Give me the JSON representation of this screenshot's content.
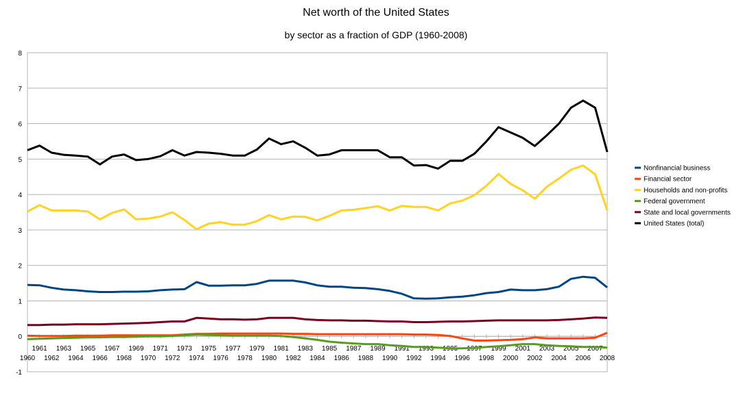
{
  "chart_data": {
    "type": "line",
    "title": "Net worth of the United States",
    "subtitle": "by sector as a fraction of GDP (1960-2008)",
    "xlabel": "",
    "ylabel": "",
    "ylim": [
      -1,
      8
    ],
    "yticks": [
      -1,
      0,
      1,
      2,
      3,
      4,
      5,
      6,
      7,
      8
    ],
    "x": [
      1960,
      1961,
      1962,
      1963,
      1964,
      1965,
      1966,
      1967,
      1968,
      1969,
      1970,
      1971,
      1972,
      1973,
      1974,
      1975,
      1976,
      1977,
      1978,
      1979,
      1980,
      1981,
      1982,
      1983,
      1984,
      1985,
      1986,
      1987,
      1988,
      1989,
      1990,
      1991,
      1992,
      1993,
      1994,
      1995,
      1996,
      1997,
      1998,
      1999,
      2000,
      2001,
      2002,
      2003,
      2004,
      2005,
      2006,
      2007,
      2008
    ],
    "grid": "horizontal",
    "legend_position": "right",
    "series": [
      {
        "name": "Nonfinancial business",
        "color": "#004586",
        "values": [
          1.45,
          1.44,
          1.37,
          1.32,
          1.3,
          1.27,
          1.25,
          1.25,
          1.26,
          1.26,
          1.27,
          1.3,
          1.32,
          1.33,
          1.53,
          1.43,
          1.43,
          1.44,
          1.44,
          1.48,
          1.57,
          1.57,
          1.57,
          1.52,
          1.44,
          1.4,
          1.4,
          1.37,
          1.36,
          1.33,
          1.28,
          1.2,
          1.07,
          1.06,
          1.07,
          1.1,
          1.12,
          1.16,
          1.22,
          1.25,
          1.32,
          1.3,
          1.3,
          1.33,
          1.4,
          1.62,
          1.68,
          1.65,
          1.38
        ]
      },
      {
        "name": "Financial sector",
        "color": "#ff420e",
        "values": [
          0.02,
          0.01,
          0.01,
          0.01,
          0.02,
          0.02,
          0.02,
          0.03,
          0.03,
          0.03,
          0.03,
          0.03,
          0.03,
          0.05,
          0.07,
          0.07,
          0.08,
          0.08,
          0.08,
          0.08,
          0.08,
          0.08,
          0.07,
          0.07,
          0.06,
          0.06,
          0.06,
          0.06,
          0.06,
          0.06,
          0.06,
          0.06,
          0.05,
          0.05,
          0.04,
          0.01,
          -0.06,
          -0.12,
          -0.12,
          -0.11,
          -0.1,
          -0.08,
          -0.03,
          -0.06,
          -0.06,
          -0.06,
          -0.06,
          -0.04,
          0.1
        ]
      },
      {
        "name": "Households and non-profits",
        "color": "#ffd320",
        "values": [
          3.52,
          3.7,
          3.55,
          3.55,
          3.55,
          3.52,
          3.3,
          3.48,
          3.58,
          3.3,
          3.32,
          3.38,
          3.5,
          3.28,
          3.02,
          3.18,
          3.22,
          3.15,
          3.15,
          3.25,
          3.42,
          3.3,
          3.38,
          3.37,
          3.27,
          3.4,
          3.55,
          3.57,
          3.62,
          3.67,
          3.55,
          3.68,
          3.65,
          3.65,
          3.55,
          3.75,
          3.83,
          3.98,
          4.25,
          4.58,
          4.3,
          4.12,
          3.88,
          4.22,
          4.45,
          4.7,
          4.82,
          4.57,
          3.55
        ]
      },
      {
        "name": "Federal government",
        "color": "#579d1c",
        "values": [
          -0.08,
          -0.07,
          -0.06,
          -0.05,
          -0.04,
          -0.03,
          -0.03,
          -0.02,
          -0.02,
          -0.01,
          0.0,
          0.0,
          0.01,
          0.03,
          0.05,
          0.04,
          0.03,
          0.02,
          0.02,
          0.02,
          0.02,
          0.01,
          -0.02,
          -0.06,
          -0.1,
          -0.15,
          -0.18,
          -0.2,
          -0.22,
          -0.22,
          -0.25,
          -0.27,
          -0.3,
          -0.3,
          -0.32,
          -0.34,
          -0.34,
          -0.33,
          -0.3,
          -0.28,
          -0.25,
          -0.22,
          -0.22,
          -0.25,
          -0.27,
          -0.28,
          -0.3,
          -0.3,
          -0.32
        ]
      },
      {
        "name": "State and local governments",
        "color": "#7e0021",
        "values": [
          0.32,
          0.32,
          0.33,
          0.33,
          0.34,
          0.34,
          0.34,
          0.35,
          0.36,
          0.37,
          0.38,
          0.4,
          0.42,
          0.42,
          0.52,
          0.5,
          0.48,
          0.48,
          0.47,
          0.48,
          0.52,
          0.52,
          0.52,
          0.48,
          0.46,
          0.45,
          0.45,
          0.44,
          0.44,
          0.43,
          0.42,
          0.42,
          0.4,
          0.4,
          0.41,
          0.42,
          0.42,
          0.43,
          0.44,
          0.45,
          0.45,
          0.45,
          0.45,
          0.45,
          0.46,
          0.48,
          0.5,
          0.53,
          0.52
        ]
      },
      {
        "name": "United States (total)",
        "color": "#000000",
        "values": [
          5.25,
          5.38,
          5.18,
          5.12,
          5.1,
          5.07,
          4.85,
          5.07,
          5.13,
          4.97,
          5.0,
          5.08,
          5.25,
          5.1,
          5.2,
          5.18,
          5.15,
          5.1,
          5.1,
          5.27,
          5.58,
          5.42,
          5.5,
          5.32,
          5.1,
          5.13,
          5.25,
          5.25,
          5.25,
          5.25,
          5.05,
          5.05,
          4.82,
          4.83,
          4.73,
          4.95,
          4.95,
          5.15,
          5.5,
          5.9,
          5.75,
          5.6,
          5.37,
          5.67,
          6.0,
          6.45,
          6.65,
          6.45,
          5.2
        ]
      }
    ]
  }
}
